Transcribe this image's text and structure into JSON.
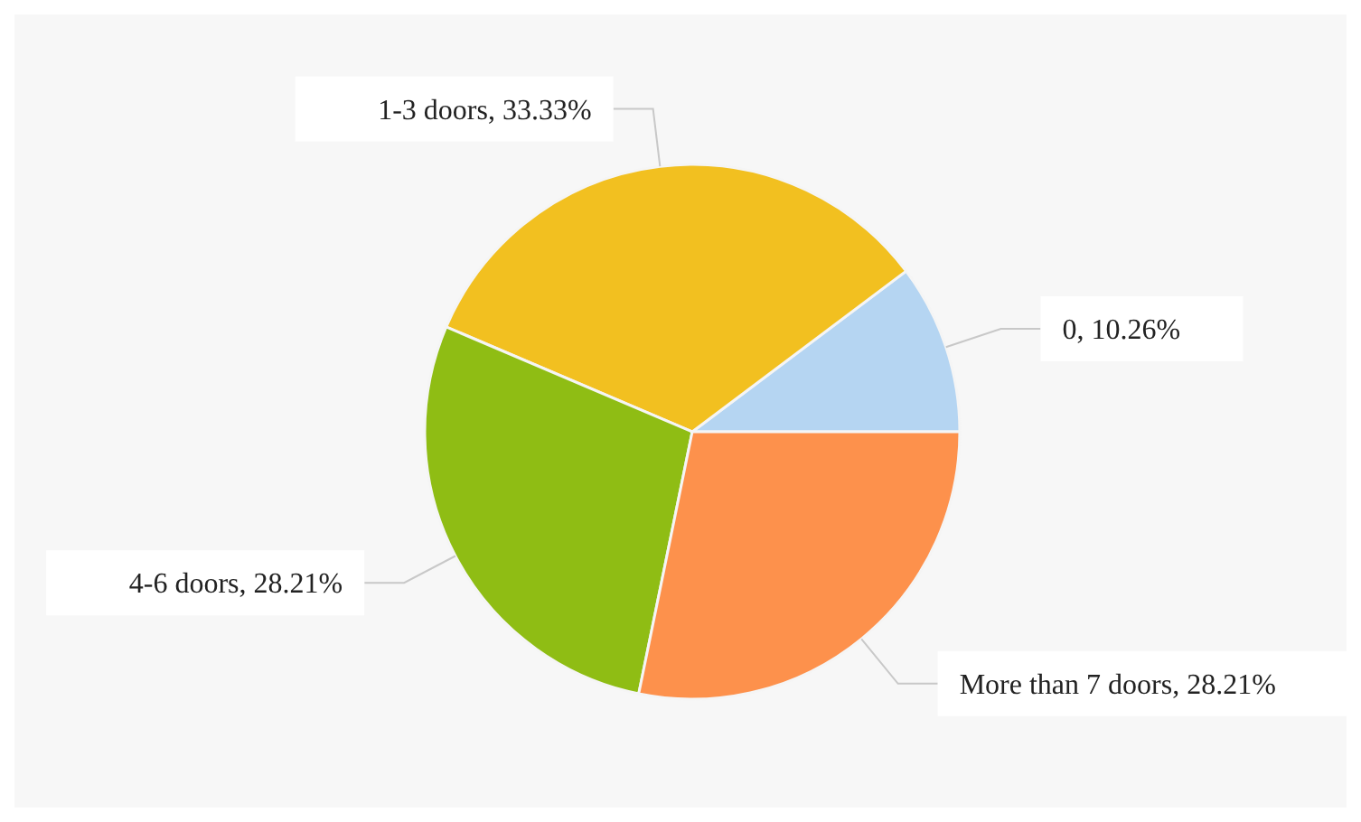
{
  "chart_data": {
    "type": "pie",
    "categories": [
      "0",
      "1-3 doors",
      "4-6 doors",
      "More than 7 doors"
    ],
    "values": [
      10.26,
      33.33,
      28.21,
      28.21
    ],
    "value_labels": [
      ", 10.26%",
      ", 33.33%",
      ", 28.21%",
      ", 28.21%"
    ],
    "colors": [
      "#b5d5f2",
      "#f2c020",
      "#8fbd14",
      "#fd914c"
    ],
    "legend": false
  }
}
